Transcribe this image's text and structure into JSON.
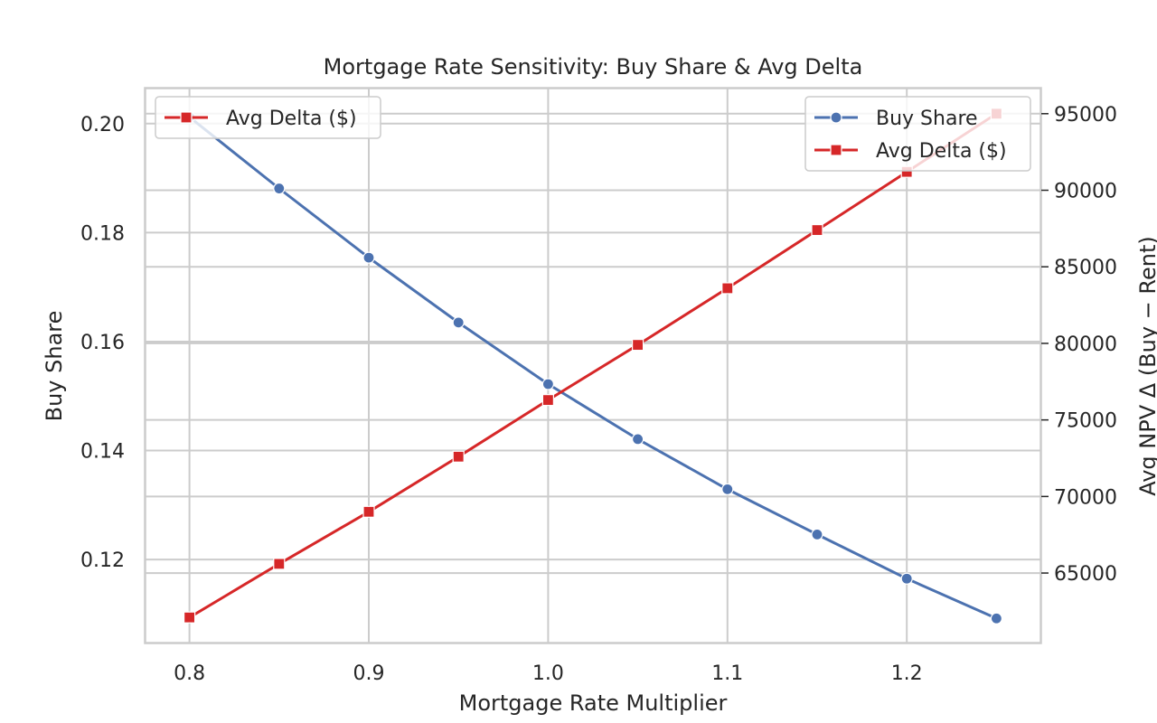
{
  "chart_data": {
    "type": "line",
    "title": "Mortgage Rate Sensitivity: Buy Share & Avg Delta",
    "xlabel": "Mortgage Rate Multiplier",
    "ylabel": "Buy Share",
    "y2label": "Avg NPV Δ (Buy − Rent)",
    "x": [
      0.8,
      0.85,
      0.9,
      0.95,
      1.0,
      1.05,
      1.1,
      1.15,
      1.2,
      1.25
    ],
    "xlim": [
      0.775,
      1.275
    ],
    "ylim": [
      0.1046,
      0.2066
    ],
    "y2lim": [
      60400,
      96700
    ],
    "xticks": [
      0.8,
      0.9,
      1.0,
      1.1,
      1.2
    ],
    "xtick_labels": [
      "0.8",
      "0.9",
      "1.0",
      "1.1",
      "1.2"
    ],
    "yticks": [
      0.12,
      0.14,
      0.16,
      0.18,
      0.2
    ],
    "ytick_labels": [
      "0.12",
      "0.14",
      "0.16",
      "0.18",
      "0.20"
    ],
    "y2ticks": [
      65000,
      70000,
      75000,
      80000,
      85000,
      90000,
      95000
    ],
    "y2tick_labels": [
      "65000",
      "70000",
      "75000",
      "80000",
      "85000",
      "90000",
      "95000"
    ],
    "grid": true,
    "series": [
      {
        "name": "Buy Share",
        "axis": "left",
        "marker": "circle",
        "color": "#4c72b0",
        "values": [
          0.2012,
          0.1881,
          0.1754,
          0.1635,
          0.1522,
          0.1421,
          0.1329,
          0.1246,
          0.1165,
          0.1092
        ]
      },
      {
        "name": "Avg Delta ($)",
        "axis": "right",
        "marker": "square",
        "color": "#d62728",
        "values": [
          62100,
          65600,
          69000,
          72600,
          76300,
          79900,
          83600,
          87400,
          91200,
          95000
        ]
      }
    ],
    "legend_left": {
      "placement": "upper-left",
      "entries": [
        {
          "label": "Avg Delta ($)",
          "color": "#d62728",
          "marker": "square"
        }
      ]
    },
    "legend_right": {
      "placement": "upper-right",
      "entries": [
        {
          "label": "Buy Share",
          "color": "#4c72b0",
          "marker": "circle"
        },
        {
          "label": "Avg Delta ($)",
          "color": "#d62728",
          "marker": "square"
        }
      ]
    }
  }
}
